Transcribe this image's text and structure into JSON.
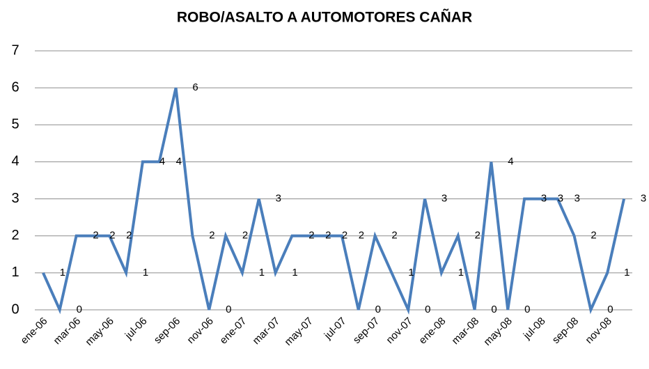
{
  "chart_data": {
    "type": "line",
    "title": "ROBO/ASALTO A AUTOMOTORES CAÑAR",
    "categories": [
      "ene-06",
      null,
      "mar-06",
      null,
      "may-06",
      null,
      "jul-06",
      null,
      "sep-06",
      null,
      "nov-06",
      null,
      "ene-07",
      null,
      "mar-07",
      null,
      "may-07",
      null,
      "jul-07",
      null,
      "sep-07",
      null,
      "nov-07",
      null,
      "ene-08",
      null,
      "mar-08",
      null,
      "may-08",
      null,
      "jul-08",
      null,
      "sep-08",
      null,
      "nov-08",
      null
    ],
    "series": [
      {
        "name": "ROBO/ASALTO A AUTOMOTORES CAÑAR",
        "color": "#4a7ebb",
        "values": [
          1,
          0,
          2,
          2,
          2,
          1,
          4,
          4,
          6,
          2,
          0,
          2,
          1,
          3,
          1,
          2,
          2,
          2,
          2,
          0,
          2,
          1,
          0,
          3,
          1,
          2,
          0,
          4,
          0,
          3,
          3,
          3,
          2,
          0,
          1,
          3
        ]
      }
    ],
    "ylim": [
      0,
      7
    ],
    "yticks": [
      0,
      1,
      2,
      3,
      4,
      5,
      6,
      7
    ],
    "grid": true,
    "data_labels": true
  }
}
